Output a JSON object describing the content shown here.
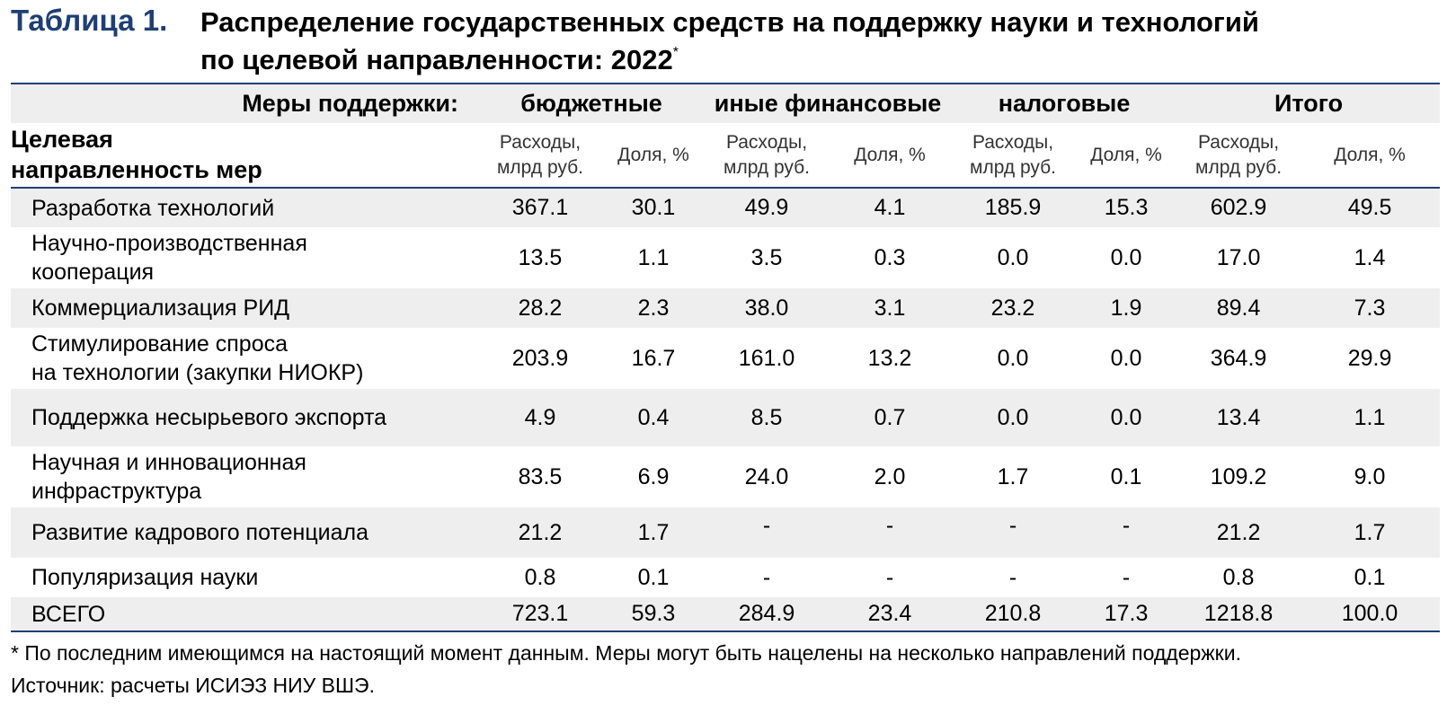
{
  "title": {
    "number": "Таблица 1.",
    "line1": "Распределение государственных средств на поддержку науки и технологий",
    "line2": "по целевой направленности: 2022",
    "marker": "*"
  },
  "header": {
    "measures_label": "Меры поддержки:",
    "groups": [
      "бюджетные",
      "иные финансовые",
      "налоговые",
      "Итого"
    ],
    "corner_line1": "Целевая",
    "corner_line2": "направленность мер",
    "expense_line1": "Расходы,",
    "expense_line2": "млрд руб.",
    "share": "Доля, %"
  },
  "rows": [
    {
      "line1": "Разработка технологий",
      "line2": "",
      "values": [
        "367.1",
        "30.1",
        "49.9",
        "4.1",
        "185.9",
        "15.3",
        "602.9",
        "49.5"
      ]
    },
    {
      "line1": "Научно-производственная",
      "line2": "кооперация",
      "values": [
        "13.5",
        "1.1",
        "3.5",
        "0.3",
        "0.0",
        "0.0",
        "17.0",
        "1.4"
      ]
    },
    {
      "line1": "Коммерциализация РИД",
      "line2": "",
      "values": [
        "28.2",
        "2.3",
        "38.0",
        "3.1",
        "23.2",
        "1.9",
        "89.4",
        "7.3"
      ]
    },
    {
      "line1": "Стимулирование спроса",
      "line2": "на технологии (закупки НИОКР)",
      "values": [
        "203.9",
        "16.7",
        "161.0",
        "13.2",
        "0.0",
        "0.0",
        "364.9",
        "29.9"
      ]
    },
    {
      "line1": "Поддержка несырьевого экспорта",
      "line2": "",
      "values": [
        "4.9",
        "0.4",
        "8.5",
        "0.7",
        "0.0",
        "0.0",
        "13.4",
        "1.1"
      ]
    },
    {
      "line1": "Научная и инновационная",
      "line2": "инфраструктура",
      "values": [
        "83.5",
        "6.9",
        "24.0",
        "2.0",
        "1.7",
        "0.1",
        "109.2",
        "9.0"
      ]
    },
    {
      "line1": "Развитие кадрового потенциала",
      "line2": "",
      "values": [
        "21.2",
        "1.7",
        "-",
        "-",
        "-",
        "-",
        "21.2",
        "1.7"
      ]
    },
    {
      "line1": "Популяризация науки",
      "line2": "",
      "values": [
        "0.8",
        "0.1",
        "-",
        "-",
        "-",
        "-",
        "0.8",
        "0.1"
      ]
    },
    {
      "line1": "ВСЕГО",
      "line2": "",
      "values": [
        "723.1",
        "59.3",
        "284.9",
        "23.4",
        "210.8",
        "17.3",
        "1218.8",
        "100.0"
      ]
    }
  ],
  "footnote": "* По последним имеющимся на настоящий момент данным. Меры могут быть нацелены на несколько направлений поддержки.",
  "source": "Источник: расчеты ИСИЭЗ НИУ ВШЭ.",
  "colors": {
    "title_accent": "#1f3f73",
    "rule": "#1f3f73",
    "row_shade": "#eeeeee"
  }
}
